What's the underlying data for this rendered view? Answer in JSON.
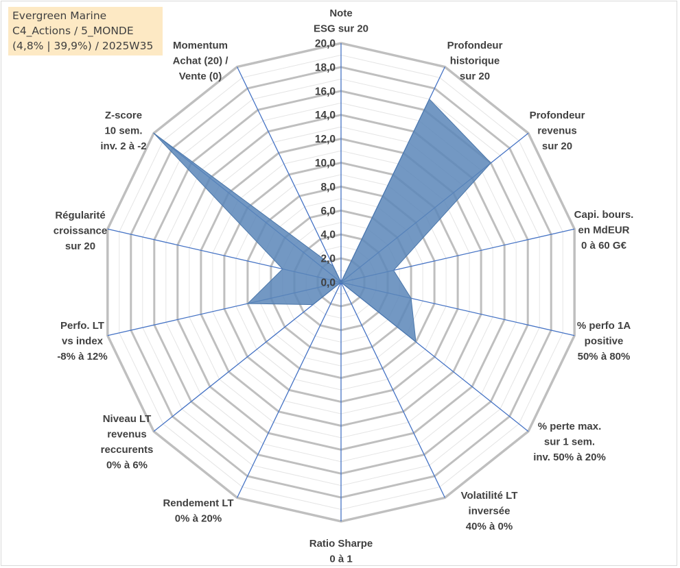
{
  "info": {
    "line1": "Evergreen Marine",
    "line2": "C4_Actions / 5_MONDE",
    "line3": "(4,8% | 39,9%) / 2025W35"
  },
  "colors": {
    "fill": "#5b86b8",
    "spoke": "#4472c4",
    "ring_major": "#bfbfbf",
    "ring_minor": "#e4e4e4",
    "text": "#404040"
  },
  "chart_data": {
    "type": "radar",
    "rmin": 0,
    "rmax": 20,
    "ticks": [
      "0,0",
      "2,0",
      "4,0",
      "6,0",
      "8,0",
      "10,0",
      "12,0",
      "14,0",
      "16,0",
      "18,0",
      "20,0"
    ],
    "axes": [
      {
        "label": [
          "Note",
          "ESG sur 20"
        ],
        "value": 0
      },
      {
        "label": [
          "Profondeur",
          "historique",
          "sur 20"
        ],
        "value": 17
      },
      {
        "label": [
          "Profondeur",
          "revenus",
          "sur 20"
        ],
        "value": 16
      },
      {
        "label": [
          "Capi. bours.",
          "en MdEUR",
          "0 à 60 G€"
        ],
        "value": 4.5
      },
      {
        "label": [
          "% perfo 1A",
          "positive",
          "50% à 80%"
        ],
        "value": 6
      },
      {
        "label": [
          "% perte max.",
          "sur 1 sem.",
          "inv. 50% à 20%"
        ],
        "value": 8
      },
      {
        "label": [
          "Volatilité LT",
          "inversée",
          "40% à 0%"
        ],
        "value": 0
      },
      {
        "label": [
          "Ratio Sharpe",
          "0 à 1"
        ],
        "value": 0
      },
      {
        "label": [
          "Rendement LT",
          "0% à 20%"
        ],
        "value": 0
      },
      {
        "label": [
          "Niveau LT",
          "revenus",
          "reccurents",
          "0% à 6%"
        ],
        "value": 3
      },
      {
        "label": [
          "Perfo. LT",
          "vs index",
          "-8% à 12%"
        ],
        "value": 8
      },
      {
        "label": [
          "Régularité",
          "croissance",
          "sur 20"
        ],
        "value": 5
      },
      {
        "label": [
          "Z-score",
          "10 sem.",
          "inv. 2 à -2"
        ],
        "value": 20
      },
      {
        "label": [
          "Momentum",
          "Achat (20) /",
          "Vente (0)"
        ],
        "value": 1.5
      }
    ]
  }
}
